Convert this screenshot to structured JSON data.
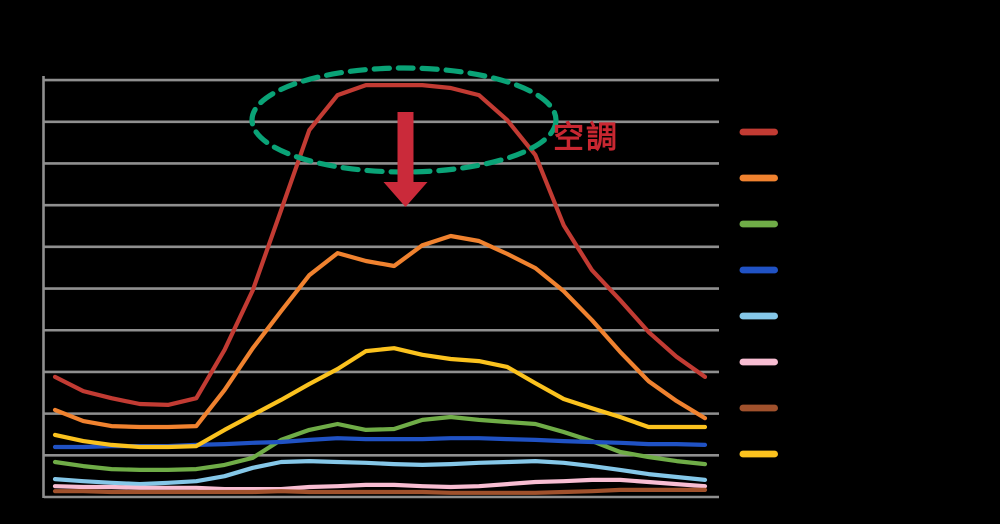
{
  "page": {
    "background": "#000000"
  },
  "chart_data": {
    "type": "line",
    "title": "",
    "x": [
      0,
      1,
      2,
      3,
      4,
      5,
      6,
      7,
      8,
      9,
      10,
      11,
      12,
      13,
      14,
      15,
      16,
      17,
      18,
      19,
      20,
      21,
      22,
      23
    ],
    "x_axis": {
      "labels_visible": false,
      "tick_count": 24
    },
    "y_axis": {
      "labels_visible": false,
      "gridline_count": 11,
      "range": [
        0,
        10
      ],
      "grid_color": "#8F8F8F"
    },
    "legend": {
      "position": "right",
      "labels_visible": false
    },
    "series": [
      {
        "id": "red",
        "color": "#C23B33",
        "values": [
          2.88,
          2.54,
          2.37,
          2.23,
          2.21,
          2.37,
          3.53,
          4.96,
          6.88,
          8.8,
          9.64,
          9.88,
          9.88,
          9.88,
          9.81,
          9.64,
          9.04,
          8.2,
          6.52,
          5.44,
          4.72,
          3.96,
          3.36,
          2.88
        ]
      },
      {
        "id": "orange",
        "color": "#F0822F",
        "values": [
          2.09,
          1.82,
          1.7,
          1.68,
          1.68,
          1.7,
          2.57,
          3.57,
          4.46,
          5.32,
          5.85,
          5.66,
          5.54,
          6.04,
          6.26,
          6.14,
          5.83,
          5.49,
          4.94,
          4.24,
          3.48,
          2.78,
          2.3,
          1.89
        ]
      },
      {
        "id": "green",
        "color": "#6FAC47",
        "values": [
          0.84,
          0.74,
          0.67,
          0.65,
          0.65,
          0.67,
          0.77,
          0.94,
          1.37,
          1.61,
          1.75,
          1.61,
          1.63,
          1.85,
          1.92,
          1.85,
          1.8,
          1.75,
          1.56,
          1.34,
          1.08,
          0.96,
          0.86,
          0.79
        ]
      },
      {
        "id": "blue",
        "color": "#2052C4",
        "values": [
          1.2,
          1.2,
          1.22,
          1.22,
          1.22,
          1.25,
          1.27,
          1.3,
          1.32,
          1.37,
          1.41,
          1.39,
          1.39,
          1.39,
          1.41,
          1.41,
          1.39,
          1.37,
          1.34,
          1.32,
          1.3,
          1.27,
          1.27,
          1.25
        ]
      },
      {
        "id": "light-blue",
        "color": "#85C7E8",
        "values": [
          0.43,
          0.38,
          0.34,
          0.31,
          0.34,
          0.38,
          0.5,
          0.7,
          0.84,
          0.86,
          0.84,
          0.82,
          0.79,
          0.77,
          0.79,
          0.82,
          0.84,
          0.86,
          0.82,
          0.74,
          0.65,
          0.55,
          0.48,
          0.41
        ]
      },
      {
        "id": "pink",
        "color": "#F8BDD2",
        "values": [
          0.26,
          0.24,
          0.24,
          0.22,
          0.22,
          0.22,
          0.19,
          0.19,
          0.19,
          0.24,
          0.26,
          0.29,
          0.29,
          0.26,
          0.24,
          0.26,
          0.31,
          0.36,
          0.38,
          0.41,
          0.41,
          0.36,
          0.31,
          0.26
        ]
      },
      {
        "id": "brown",
        "color": "#A0512C",
        "values": [
          0.14,
          0.14,
          0.12,
          0.12,
          0.12,
          0.12,
          0.12,
          0.12,
          0.14,
          0.12,
          0.12,
          0.12,
          0.12,
          0.12,
          0.1,
          0.1,
          0.1,
          0.1,
          0.12,
          0.14,
          0.17,
          0.17,
          0.17,
          0.17
        ]
      },
      {
        "id": "yellow",
        "color": "#FBC21E",
        "values": [
          1.49,
          1.34,
          1.25,
          1.2,
          1.2,
          1.22,
          1.61,
          1.97,
          2.33,
          2.71,
          3.07,
          3.5,
          3.57,
          3.41,
          3.31,
          3.26,
          3.12,
          2.73,
          2.35,
          2.13,
          1.92,
          1.68,
          1.68,
          1.68
        ]
      }
    ],
    "legend_order": [
      "red",
      "orange",
      "green",
      "blue",
      "light-blue",
      "pink",
      "brown",
      "yellow"
    ]
  },
  "annotation": {
    "label": "空調",
    "label_color": "#C92731",
    "ellipse_color": "#0AA377",
    "arrow_color": "#CA2A3A"
  }
}
